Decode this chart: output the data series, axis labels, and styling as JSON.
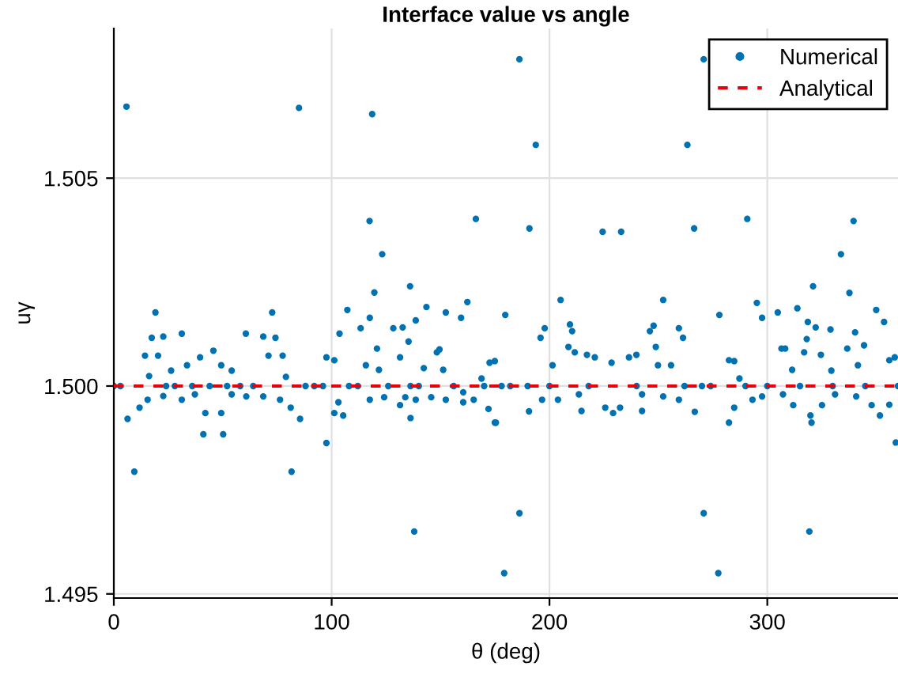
{
  "chart_data": {
    "type": "scatter",
    "title": "Interface value vs angle",
    "xlabel": "θ (deg)",
    "ylabel": "uγ",
    "xlim": [
      0,
      360
    ],
    "xticks": [
      0,
      100,
      200,
      300
    ],
    "ylim": [
      1.4949,
      1.5086
    ],
    "yticks": [
      1.495,
      {
        "value": 1.5,
        "label": "1.500"
      },
      1.505
    ],
    "grid": true,
    "legend": "top right",
    "series": [
      {
        "name": "Numerical",
        "marker": "circle",
        "color": "#0072b2",
        "x": [
          5.8,
          9.4,
          85,
          118.6,
          117.4,
          123.2,
          119.6,
          136,
          166.2,
          137.9,
          179.2,
          97.6,
          6.3,
          81.6,
          41.1,
          50.2,
          186.2,
          193.7,
          190.8,
          186.2,
          224.4,
          232.9,
          270.8,
          263.3,
          266.4,
          270.8,
          277.5,
          290.8,
          339.6,
          333.8,
          337.7,
          319.3,
          205.1,
          252.2,
          179.7,
          321,
          295.2,
          304.8,
          350,
          359,
          190.6,
          174.9,
          282.4,
          11.8,
          14.3,
          16.2,
          17.4,
          19.1,
          20.3,
          22.7,
          31.2,
          26.3,
          33.6,
          39.6,
          45.7,
          49.3,
          54.1,
          60.6,
          68.6,
          72.7,
          74.2,
          71,
          77.5,
          79,
          85.5,
          15.5,
          22.7,
          31.2,
          37.2,
          42,
          49.3,
          54.1,
          60.8,
          68.6,
          76.3,
          81.2,
          97.6,
          101.2,
          103.6,
          107.2,
          103.1,
          101.2,
          105.3,
          113.3,
          115.7,
          117.5,
          120.8,
          121.7,
          128.3,
          131.4,
          132.6,
          135.3,
          138.6,
          143.5,
          142.3,
          148.3,
          149.5,
          152.4,
          151.2,
          159.4,
          162.3,
          160.4,
          168.8,
          172.5,
          174.9,
          172,
          175.4,
          136.2,
          133.8,
          138.6,
          136.2,
          117.5,
          124.1,
          131.4,
          145.7,
          152.4,
          160.4,
          165.2,
          195.9,
          197.8,
          201.4,
          209.4,
          210.4,
          208.7,
          211.6,
          217.2,
          220.8,
          228.5,
          229.2,
          225.6,
          232.4,
          236.5,
          239.9,
          246.1,
          247.8,
          248.8,
          249.8,
          255.8,
          259.4,
          261.3,
          266.7,
          242.5,
          214.7,
          196.6,
          203.9,
          213.5,
          242.5,
          252.2,
          259.4,
          278,
          282.4,
          284.8,
          284.8,
          287.2,
          293.2,
          297.6,
          306.5,
          308.2,
          311.4,
          313.8,
          316.9,
          318.1,
          318.6,
          322.2,
          319.8,
          320.3,
          324.6,
          329,
          329.4,
          336.7,
          340.3,
          341.6,
          344.4,
          351.7,
          353.6,
          356,
          358.5,
          356,
          297.6,
          307.2,
          311.9,
          325.1,
          331.1,
          340.8,
          347.9,
          0,
          3,
          24,
          28,
          36,
          44,
          52,
          58,
          64,
          88,
          92,
          96,
          108,
          112,
          126,
          140,
          156,
          170,
          178,
          182,
          190,
          200,
          218,
          240,
          262,
          270,
          274,
          290,
          300,
          315,
          330,
          345,
          360
        ],
        "values": [
          1.50672,
          1.49794,
          1.50669,
          1.50654,
          1.50397,
          1.50317,
          1.50225,
          1.5024,
          1.50402,
          1.4965,
          1.4955,
          1.49863,
          1.49921,
          1.49794,
          1.49884,
          1.49884,
          1.50786,
          1.5058,
          1.50379,
          1.49694,
          1.50371,
          1.50371,
          1.50786,
          1.5058,
          1.50379,
          1.49694,
          1.4955,
          1.50402,
          1.50397,
          1.50317,
          1.50224,
          1.4965,
          1.50207,
          1.50207,
          1.50171,
          1.5024,
          1.502,
          1.50177,
          1.50183,
          1.49864,
          1.49939,
          1.49912,
          1.49912,
          1.49948,
          1.50073,
          1.50024,
          1.50116,
          1.50177,
          1.50073,
          1.50119,
          1.50126,
          1.50037,
          1.5005,
          1.50069,
          1.50085,
          1.5005,
          1.50037,
          1.50126,
          1.50119,
          1.50177,
          1.50116,
          1.50073,
          1.50073,
          1.50022,
          1.49921,
          1.49967,
          1.49976,
          1.49967,
          1.4998,
          1.49935,
          1.49935,
          1.4998,
          1.49975,
          1.49975,
          1.49967,
          1.49948,
          1.50069,
          1.50062,
          1.50126,
          1.50183,
          1.49961,
          1.49935,
          1.49929,
          1.50139,
          1.5005,
          1.50164,
          1.5009,
          1.50039,
          1.50139,
          1.50069,
          1.50141,
          1.50107,
          1.50158,
          1.5019,
          1.50043,
          1.50081,
          1.50088,
          1.50177,
          1.50039,
          1.50164,
          1.50202,
          1.49961,
          1.50018,
          1.50056,
          1.5006,
          1.49945,
          1.49912,
          1.49923,
          1.49973,
          1.49967,
          1.5,
          1.49967,
          1.49973,
          1.49954,
          1.49973,
          1.49967,
          1.49985,
          1.49967,
          1.50116,
          1.50139,
          1.5005,
          1.50148,
          1.50132,
          1.50094,
          1.50081,
          1.50075,
          1.50069,
          1.50056,
          1.49935,
          1.49948,
          1.49948,
          1.50069,
          1.50075,
          1.50132,
          1.50145,
          1.50094,
          1.5005,
          1.5005,
          1.50139,
          1.50116,
          1.49938,
          1.4994,
          1.4994,
          1.49967,
          1.49967,
          1.4998,
          1.4998,
          1.49975,
          1.49967,
          1.50171,
          1.50062,
          1.5006,
          1.49948,
          1.50018,
          1.49967,
          1.50164,
          1.5009,
          1.5009,
          1.50039,
          1.50187,
          1.50081,
          1.50113,
          1.50154,
          1.50141,
          1.49929,
          1.49912,
          1.50075,
          1.50136,
          1.50037,
          1.5009,
          1.50129,
          1.5005,
          1.50098,
          1.49929,
          1.50154,
          1.50062,
          1.50069,
          1.49955,
          1.49975,
          1.4998,
          1.49954,
          1.49954,
          1.4998,
          1.49975,
          1.49954,
          1.5,
          1.5,
          1.5,
          1.5,
          1.5,
          1.5,
          1.5,
          1.5,
          1.5,
          1.5,
          1.5,
          1.5,
          1.5,
          1.5,
          1.5,
          1.5,
          1.5,
          1.5,
          1.5,
          1.5,
          1.5,
          1.5,
          1.5,
          1.5,
          1.5,
          1.5,
          1.5,
          1.5,
          1.5,
          1.5,
          1.5,
          1.5,
          1.5
        ]
      },
      {
        "name": "Analytical",
        "type": "line",
        "line_style": "dashed",
        "color": "#e8000b",
        "x": [
          0,
          360
        ],
        "values": [
          1.5,
          1.5
        ]
      }
    ]
  }
}
